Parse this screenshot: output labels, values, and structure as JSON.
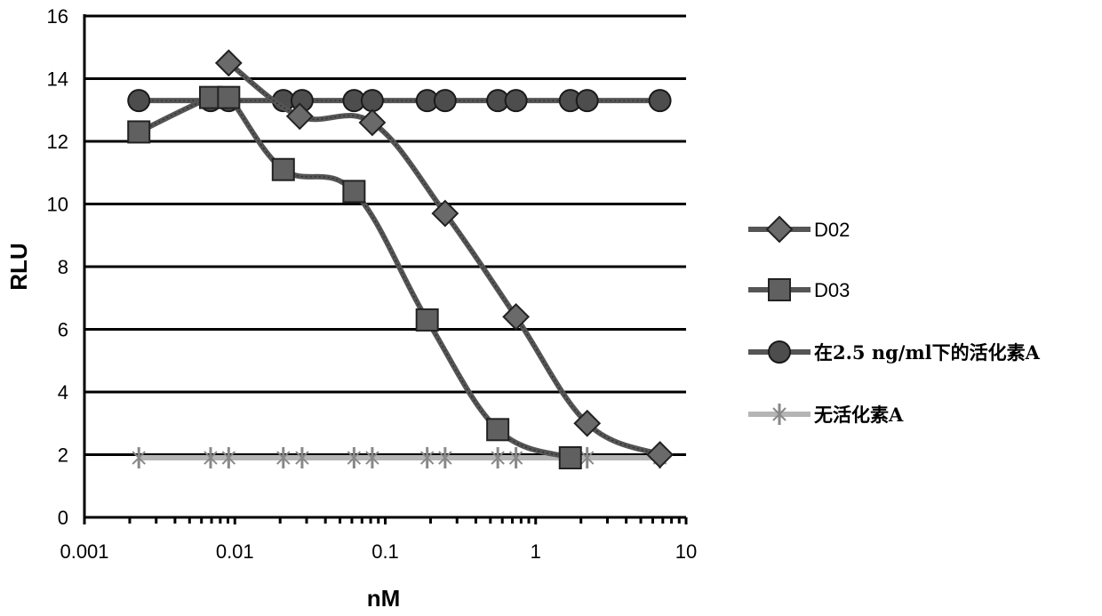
{
  "chart_data": {
    "type": "line",
    "title": "",
    "xlabel": "nM",
    "ylabel": "RLU",
    "x_scale": "log",
    "xlim": [
      0.001,
      10
    ],
    "ylim": [
      0,
      16
    ],
    "x_ticks": [
      0.001,
      0.01,
      0.1,
      1,
      10
    ],
    "x_tick_labels": [
      "0.001",
      "0.01",
      "0.1",
      "1",
      "10"
    ],
    "y_ticks": [
      0,
      2,
      4,
      6,
      8,
      10,
      12,
      14,
      16
    ],
    "y_tick_labels": [
      "0",
      "2",
      "4",
      "6",
      "8",
      "10",
      "12",
      "14",
      "16"
    ],
    "grid": "horizontal",
    "legend_position": "right",
    "series": [
      {
        "name": "D02",
        "marker": "diamond",
        "color": "#555555",
        "x": [
          0.0091,
          0.027,
          0.082,
          0.25,
          0.74,
          2.2,
          6.7
        ],
        "y": [
          14.5,
          12.8,
          12.6,
          9.7,
          6.4,
          3.0,
          2.0
        ]
      },
      {
        "name": "D03",
        "marker": "square",
        "color": "#555555",
        "x": [
          0.0023,
          0.0069,
          0.0091,
          0.021,
          0.062,
          0.19,
          0.56,
          1.7
        ],
        "y": [
          12.3,
          13.4,
          13.4,
          11.1,
          10.4,
          6.3,
          2.8,
          1.9
        ]
      },
      {
        "name": "在2.5 ng/ml下的活化素A",
        "marker": "circle",
        "color": "#3a3a3a",
        "x": [
          0.0023,
          0.0069,
          0.0091,
          0.021,
          0.028,
          0.062,
          0.082,
          0.19,
          0.25,
          0.56,
          0.74,
          1.7,
          2.2,
          6.7
        ],
        "y": [
          13.3,
          13.3,
          13.3,
          13.3,
          13.3,
          13.3,
          13.3,
          13.3,
          13.3,
          13.3,
          13.3,
          13.3,
          13.3,
          13.3
        ]
      },
      {
        "name": "无活化素A",
        "marker": "star",
        "color": "#aaaaaa",
        "x": [
          0.0023,
          0.0069,
          0.0091,
          0.021,
          0.028,
          0.062,
          0.082,
          0.19,
          0.25,
          0.56,
          0.74,
          1.7,
          2.2,
          6.7
        ],
        "y": [
          1.9,
          1.9,
          1.9,
          1.9,
          1.9,
          1.9,
          1.9,
          1.9,
          1.9,
          1.9,
          1.9,
          1.9,
          1.9,
          1.9
        ]
      }
    ]
  }
}
